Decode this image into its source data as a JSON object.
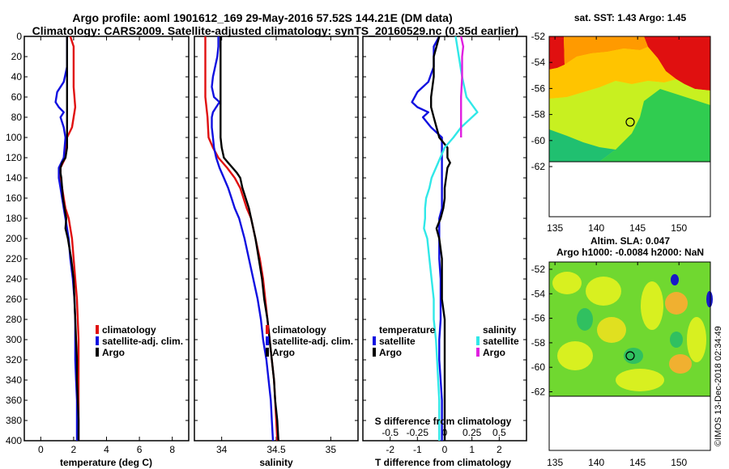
{
  "header": {
    "title_line1": "Argo profile: aoml 1901612_169 29-May-2016 57.52S 144.21E (DM data)",
    "title_line2": "Climatology: CARS2009. Satellite-adjusted climatology: synTS_20160529.nc (0.35d earlier)"
  },
  "colors": {
    "climatology": "#e01010",
    "satellite": "#1010e0",
    "argo": "#000000",
    "sat_salinity": "#30e8e8",
    "argo_salinity": "#e020e0"
  },
  "chart_data": [
    {
      "type": "line",
      "name": "temperature-profile",
      "xlabel": "temperature (deg C)",
      "ylabel": "",
      "xlim": [
        -1,
        9
      ],
      "ylim": [
        400,
        0
      ],
      "xticks": [
        "0",
        "2",
        "4",
        "6",
        "8"
      ],
      "yticks": [
        "0",
        "20",
        "40",
        "60",
        "80",
        "100",
        "120",
        "140",
        "160",
        "180",
        "200",
        "220",
        "240",
        "260",
        "280",
        "300",
        "320",
        "340",
        "360",
        "380",
        "400"
      ],
      "legend": [
        "climatology",
        "satellite-adj. clim.",
        "Argo"
      ],
      "legend_position": "lower-right",
      "series": [
        {
          "name": "climatology",
          "color": "#e01010",
          "depth": [
            0,
            10,
            30,
            50,
            70,
            80,
            90,
            100,
            120,
            130,
            140,
            150,
            160,
            170,
            180,
            200,
            220,
            240,
            260,
            280,
            300,
            320,
            340,
            360,
            380,
            400
          ],
          "values": [
            1.8,
            2.0,
            2.0,
            2.0,
            2.1,
            2.0,
            1.9,
            1.6,
            1.5,
            1.2,
            1.2,
            1.3,
            1.4,
            1.5,
            1.7,
            1.9,
            2.0,
            2.1,
            2.2,
            2.25,
            2.3,
            2.3,
            2.3,
            2.3,
            2.3,
            2.3
          ]
        },
        {
          "name": "satellite-adj. clim.",
          "color": "#1010e0",
          "depth": [
            0,
            10,
            30,
            45,
            55,
            65,
            70,
            75,
            80,
            90,
            100,
            120,
            130,
            140,
            150,
            160,
            170,
            180,
            200,
            220,
            240,
            260,
            280,
            300,
            320,
            340,
            360,
            380,
            400
          ],
          "values": [
            1.6,
            1.6,
            1.6,
            1.4,
            1.0,
            0.9,
            1.1,
            1.4,
            1.2,
            1.4,
            1.5,
            1.4,
            1.1,
            1.1,
            1.2,
            1.3,
            1.4,
            1.5,
            1.7,
            1.8,
            1.95,
            2.05,
            2.1,
            2.1,
            2.1,
            2.15,
            2.2,
            2.2,
            2.2
          ]
        },
        {
          "name": "Argo",
          "color": "#000000",
          "depth": [
            0,
            20,
            40,
            60,
            80,
            100,
            110,
            120,
            125,
            130,
            135,
            140,
            150,
            160,
            170,
            180,
            190,
            200,
            220,
            240,
            260,
            280,
            300,
            320,
            340,
            360,
            380,
            400
          ],
          "values": [
            1.6,
            1.6,
            1.6,
            1.6,
            1.6,
            1.6,
            1.6,
            1.5,
            1.3,
            1.2,
            1.2,
            1.25,
            1.3,
            1.35,
            1.45,
            1.55,
            1.5,
            1.65,
            1.85,
            2.0,
            2.05,
            2.1,
            2.15,
            2.2,
            2.2,
            2.25,
            2.3,
            2.3
          ]
        }
      ]
    },
    {
      "type": "line",
      "name": "salinity-profile",
      "xlabel": "salinity",
      "ylabel": "",
      "xlim": [
        33.75,
        35.25
      ],
      "ylim": [
        400,
        0
      ],
      "xticks": [
        "34",
        "34.5",
        "35"
      ],
      "legend": [
        "climatology",
        "satellite-adj. clim.",
        "Argo"
      ],
      "legend_position": "lower-right",
      "series": [
        {
          "name": "climatology",
          "color": "#e01010",
          "depth": [
            0,
            20,
            40,
            60,
            80,
            100,
            110,
            120,
            130,
            140,
            150,
            160,
            170,
            180,
            200,
            220,
            240,
            260,
            280,
            300,
            320,
            340,
            360,
            380,
            400
          ],
          "values": [
            33.85,
            33.85,
            33.85,
            33.85,
            33.87,
            33.88,
            33.92,
            33.97,
            34.05,
            34.12,
            34.17,
            34.2,
            34.23,
            34.27,
            34.31,
            34.35,
            34.38,
            34.4,
            34.42,
            34.44,
            34.46,
            34.48,
            34.49,
            34.5,
            34.51
          ]
        },
        {
          "name": "satellite-adj. clim.",
          "color": "#1010e0",
          "depth": [
            0,
            10,
            20,
            30,
            40,
            50,
            60,
            65,
            70,
            75,
            80,
            90,
            100,
            110,
            120,
            130,
            140,
            150,
            160,
            170,
            180,
            200,
            220,
            240,
            260,
            280,
            300,
            320,
            340,
            360,
            380,
            400
          ],
          "values": [
            33.97,
            33.97,
            33.96,
            33.94,
            33.92,
            33.91,
            33.93,
            33.98,
            33.95,
            33.92,
            33.91,
            33.91,
            33.92,
            33.93,
            33.95,
            33.98,
            34.02,
            34.06,
            34.09,
            34.12,
            34.16,
            34.21,
            34.25,
            34.29,
            34.33,
            34.36,
            34.38,
            34.41,
            34.43,
            34.45,
            34.46,
            34.47
          ]
        },
        {
          "name": "Argo",
          "color": "#000000",
          "depth": [
            0,
            20,
            40,
            60,
            80,
            100,
            110,
            120,
            125,
            130,
            135,
            140,
            150,
            160,
            170,
            180,
            200,
            220,
            240,
            260,
            280,
            300,
            320,
            340,
            360,
            380,
            400
          ],
          "values": [
            33.99,
            33.99,
            33.99,
            33.99,
            33.99,
            33.99,
            34.0,
            34.02,
            34.06,
            34.1,
            34.14,
            34.17,
            34.19,
            34.22,
            34.25,
            34.27,
            34.31,
            34.34,
            34.37,
            34.39,
            34.42,
            34.44,
            34.46,
            34.48,
            34.49,
            34.51,
            34.52
          ]
        }
      ]
    },
    {
      "type": "line",
      "name": "difference-profile",
      "xlabel": "T difference from climatology",
      "xlabel_top": "S difference from climatology",
      "ylabel": "",
      "xlim": [
        -3,
        3
      ],
      "ylim": [
        400,
        0
      ],
      "xticks": [
        "-2",
        "-1",
        "0",
        "1",
        "2"
      ],
      "xticks_top": [
        "-0.5",
        "-0.25",
        "0",
        "0.25",
        "0.5"
      ],
      "legend_temperature": {
        "title": "temperature",
        "items": [
          "satellite",
          "Argo"
        ]
      },
      "legend_salinity": {
        "title": "salinity",
        "items": [
          "satellite",
          "Argo"
        ]
      },
      "series": [
        {
          "name": "T satellite",
          "color": "#1010e0",
          "depth": [
            0,
            10,
            30,
            45,
            55,
            65,
            70,
            75,
            80,
            90,
            100,
            120,
            130,
            140,
            150,
            160,
            170,
            180,
            200,
            220,
            240,
            260,
            280,
            300,
            320,
            340,
            360,
            380,
            400
          ],
          "values": [
            -0.2,
            -0.4,
            -0.4,
            -0.6,
            -1.0,
            -1.2,
            -1.0,
            -0.6,
            -0.8,
            -0.5,
            -0.1,
            -0.1,
            -0.1,
            -0.1,
            -0.1,
            -0.1,
            -0.1,
            -0.2,
            -0.2,
            -0.2,
            -0.15,
            -0.15,
            -0.15,
            -0.2,
            -0.2,
            -0.15,
            -0.1,
            -0.1,
            -0.1
          ]
        },
        {
          "name": "T Argo",
          "color": "#000000",
          "depth": [
            0,
            20,
            40,
            60,
            70,
            80,
            90,
            100,
            110,
            120,
            125,
            130,
            140,
            150,
            160,
            170,
            180,
            190,
            200,
            220,
            240,
            260,
            280,
            300,
            320,
            340,
            360,
            380,
            400
          ],
          "values": [
            -0.2,
            -0.4,
            -0.4,
            -0.5,
            -0.5,
            -0.4,
            -0.3,
            -0.2,
            0.1,
            0.1,
            0.2,
            0.1,
            0.05,
            0.0,
            0.0,
            -0.05,
            -0.15,
            -0.3,
            -0.2,
            -0.1,
            -0.1,
            -0.1,
            0.0,
            0.0,
            0.0,
            0.0,
            0.0,
            0.0,
            0.0
          ]
        },
        {
          "name": "S satellite",
          "color": "#30e8e8",
          "depth": [
            0,
            20,
            40,
            60,
            75,
            90,
            100,
            110,
            120,
            130,
            140,
            150,
            160,
            170,
            180,
            190,
            200,
            220,
            240,
            260,
            280,
            300,
            320,
            340,
            360,
            380,
            400
          ],
          "values": [
            0.1,
            0.13,
            0.16,
            0.2,
            0.3,
            0.15,
            0.08,
            0.0,
            -0.04,
            -0.08,
            -0.12,
            -0.14,
            -0.17,
            -0.18,
            -0.18,
            -0.19,
            -0.16,
            -0.14,
            -0.12,
            -0.1,
            -0.1,
            -0.08,
            -0.07,
            -0.06,
            -0.05,
            -0.05,
            -0.05
          ]
        },
        {
          "name": "S Argo",
          "color": "#e020e0",
          "depth": [
            0,
            10,
            20,
            40,
            60,
            75,
            80,
            90,
            100
          ],
          "values": [
            0.15,
            0.17,
            0.16,
            0.16,
            0.15,
            0.15,
            0.15,
            0.15,
            0.15
          ]
        }
      ]
    }
  ],
  "maps": {
    "sst": {
      "title": "sat. SST: 1.43 Argo: 1.45",
      "xticks": [
        "135",
        "140",
        "145",
        "150"
      ],
      "yticks": [
        "-52",
        "-54",
        "-56",
        "-58",
        "-60",
        "-62"
      ]
    },
    "sla": {
      "title_line1": "Altim. SLA: 0.047",
      "title_line2": "Argo h1000: -0.0084 h2000: NaN",
      "xticks": [
        "135",
        "140",
        "145",
        "150"
      ],
      "yticks": [
        "-52",
        "-54",
        "-56",
        "-58",
        "-60",
        "-62"
      ]
    }
  },
  "credit": "©IMOS 13-Dec-2018 02:34:49"
}
